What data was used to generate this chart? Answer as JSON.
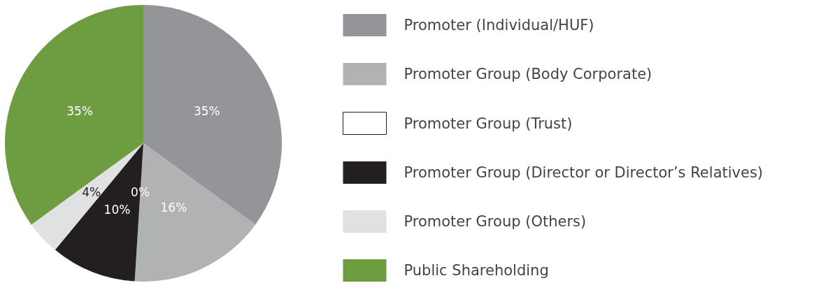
{
  "chart_data": {
    "type": "pie",
    "categories": [
      "Promoter (Individual/HUF)",
      "Promoter Group (Body Corporate)",
      "Promoter Group (Trust)",
      "Promoter Group (Director or Director’s Relatives)",
      "Promoter Group (Others)",
      "Public Shareholding"
    ],
    "values": [
      35,
      16,
      0,
      10,
      4,
      35
    ],
    "colors": [
      "#949598",
      "#b1b2b4",
      "#ffffff",
      "#231f20",
      "#e0e1e2",
      "#6e9c40"
    ],
    "value_labels": [
      "35%",
      "16%",
      "0%",
      "10%",
      "4%",
      "35%"
    ],
    "legend": "right"
  }
}
